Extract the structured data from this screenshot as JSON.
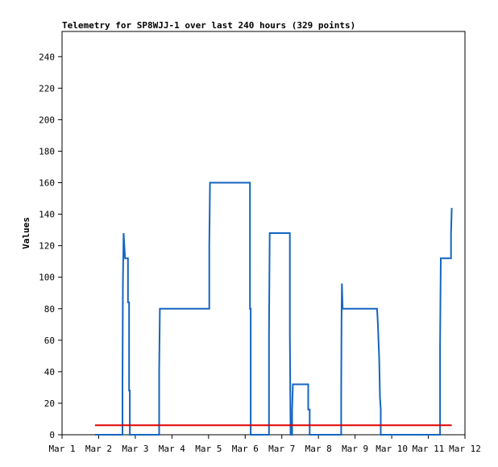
{
  "chart_data": {
    "type": "line",
    "title": "Telemetry for SP8WJJ-1 over last 240 hours (329 points)",
    "xlabel": "",
    "ylabel": "Values",
    "x_tick_labels": [
      "Mar 1",
      "Mar 2",
      "Mar 3",
      "Mar 4",
      "Mar 5",
      "Mar 6",
      "Mar 7",
      "Mar 8",
      "Mar 9",
      "Mar 10",
      "Mar 11",
      "Mar 12"
    ],
    "xlim_days": [
      1,
      12
    ],
    "ylim": [
      0,
      256
    ],
    "y_ticks": [
      0,
      20,
      40,
      60,
      80,
      100,
      120,
      140,
      160,
      180,
      200,
      220,
      240
    ],
    "grid": false,
    "series": [
      {
        "color": "#1565c0",
        "points": [
          [
            1.9,
            0
          ],
          [
            2.65,
            0
          ],
          [
            2.65,
            32
          ],
          [
            2.66,
            96
          ],
          [
            2.68,
            128
          ],
          [
            2.7,
            120
          ],
          [
            2.72,
            112
          ],
          [
            2.8,
            112
          ],
          [
            2.8,
            84
          ],
          [
            2.83,
            84
          ],
          [
            2.83,
            28
          ],
          [
            2.85,
            28
          ],
          [
            2.85,
            0
          ],
          [
            3.65,
            0
          ],
          [
            3.65,
            40
          ],
          [
            3.67,
            80
          ],
          [
            5.02,
            80
          ],
          [
            5.02,
            120
          ],
          [
            5.04,
            160
          ],
          [
            6.13,
            160
          ],
          [
            6.13,
            80
          ],
          [
            6.15,
            80
          ],
          [
            6.15,
            0
          ],
          [
            6.65,
            0
          ],
          [
            6.65,
            64
          ],
          [
            6.67,
            128
          ],
          [
            7.22,
            128
          ],
          [
            7.22,
            64
          ],
          [
            7.24,
            0
          ],
          [
            7.28,
            0
          ],
          [
            7.28,
            16
          ],
          [
            7.3,
            32
          ],
          [
            7.72,
            32
          ],
          [
            7.72,
            16
          ],
          [
            7.76,
            16
          ],
          [
            7.76,
            0
          ],
          [
            8.62,
            0
          ],
          [
            8.62,
            24
          ],
          [
            8.63,
            72
          ],
          [
            8.64,
            96
          ],
          [
            8.66,
            80
          ],
          [
            9.6,
            80
          ],
          [
            9.62,
            72
          ],
          [
            9.64,
            60
          ],
          [
            9.66,
            48
          ],
          [
            9.68,
            24
          ],
          [
            9.7,
            16
          ],
          [
            9.7,
            0
          ],
          [
            11.32,
            0
          ],
          [
            11.32,
            56
          ],
          [
            11.34,
            112
          ],
          [
            11.62,
            112
          ],
          [
            11.62,
            128
          ],
          [
            11.64,
            144
          ]
        ]
      },
      {
        "color": "#e00000",
        "points": [
          [
            1.9,
            6
          ],
          [
            11.64,
            6
          ]
        ]
      }
    ]
  }
}
